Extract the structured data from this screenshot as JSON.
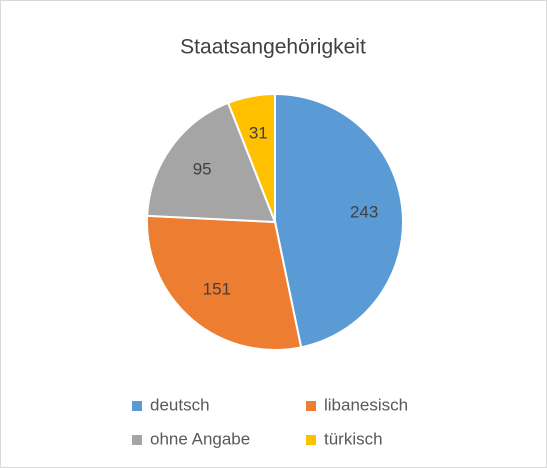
{
  "chart_data": {
    "type": "pie",
    "title": "Staatsangehörigkeit",
    "categories": [
      "deutsch",
      "libanesisch",
      "ohne Angabe",
      "türkisch"
    ],
    "values": [
      243,
      151,
      95,
      31
    ],
    "colors": [
      "#5b9bd5",
      "#ed7d31",
      "#a5a5a5",
      "#ffc000"
    ],
    "legend": "bottom"
  }
}
